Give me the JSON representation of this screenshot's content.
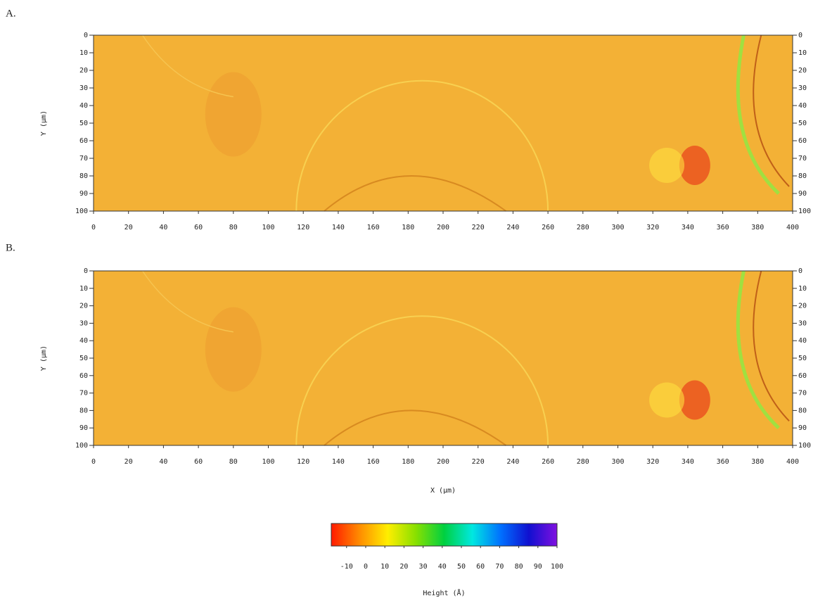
{
  "chart_data": [
    {
      "type": "heatmap",
      "title": "A.",
      "ylabel": "Y (µm)",
      "color": "#f3b136",
      "xlim": [
        0,
        400
      ],
      "xticks": [
        0,
        20,
        40,
        60,
        80,
        100,
        120,
        140,
        160,
        180,
        200,
        220,
        240,
        260,
        280,
        300,
        320,
        340,
        360,
        380,
        400
      ],
      "ylim": [
        100,
        0
      ],
      "yticks": [
        0,
        10,
        20,
        30,
        40,
        50,
        60,
        70,
        80,
        90,
        100
      ]
    },
    {
      "type": "heatmap",
      "title": "B.",
      "ylabel": "Y (µm)",
      "xlabel": "X (µm)",
      "color": "#f3b136",
      "xlim": [
        0,
        400
      ],
      "xticks": [
        0,
        20,
        40,
        60,
        80,
        100,
        120,
        140,
        160,
        180,
        200,
        220,
        240,
        260,
        280,
        300,
        320,
        340,
        360,
        380,
        400
      ],
      "ylim": [
        100,
        0
      ],
      "yticks": [
        0,
        10,
        20,
        30,
        40,
        50,
        60,
        70,
        80,
        90,
        100
      ]
    },
    {
      "type": "colorbar",
      "title": "Height (Å)",
      "colors": [
        "#ff1a00",
        "#ff8c00",
        "#ffee00",
        "#88e000",
        "#00d040",
        "#00e8e0",
        "#0070ff",
        "#1010d0",
        "#8010e0"
      ],
      "xlim": [
        -18,
        100
      ],
      "xticks": [
        -10,
        0,
        10,
        20,
        30,
        40,
        50,
        60,
        70,
        80,
        90,
        100
      ]
    }
  ]
}
